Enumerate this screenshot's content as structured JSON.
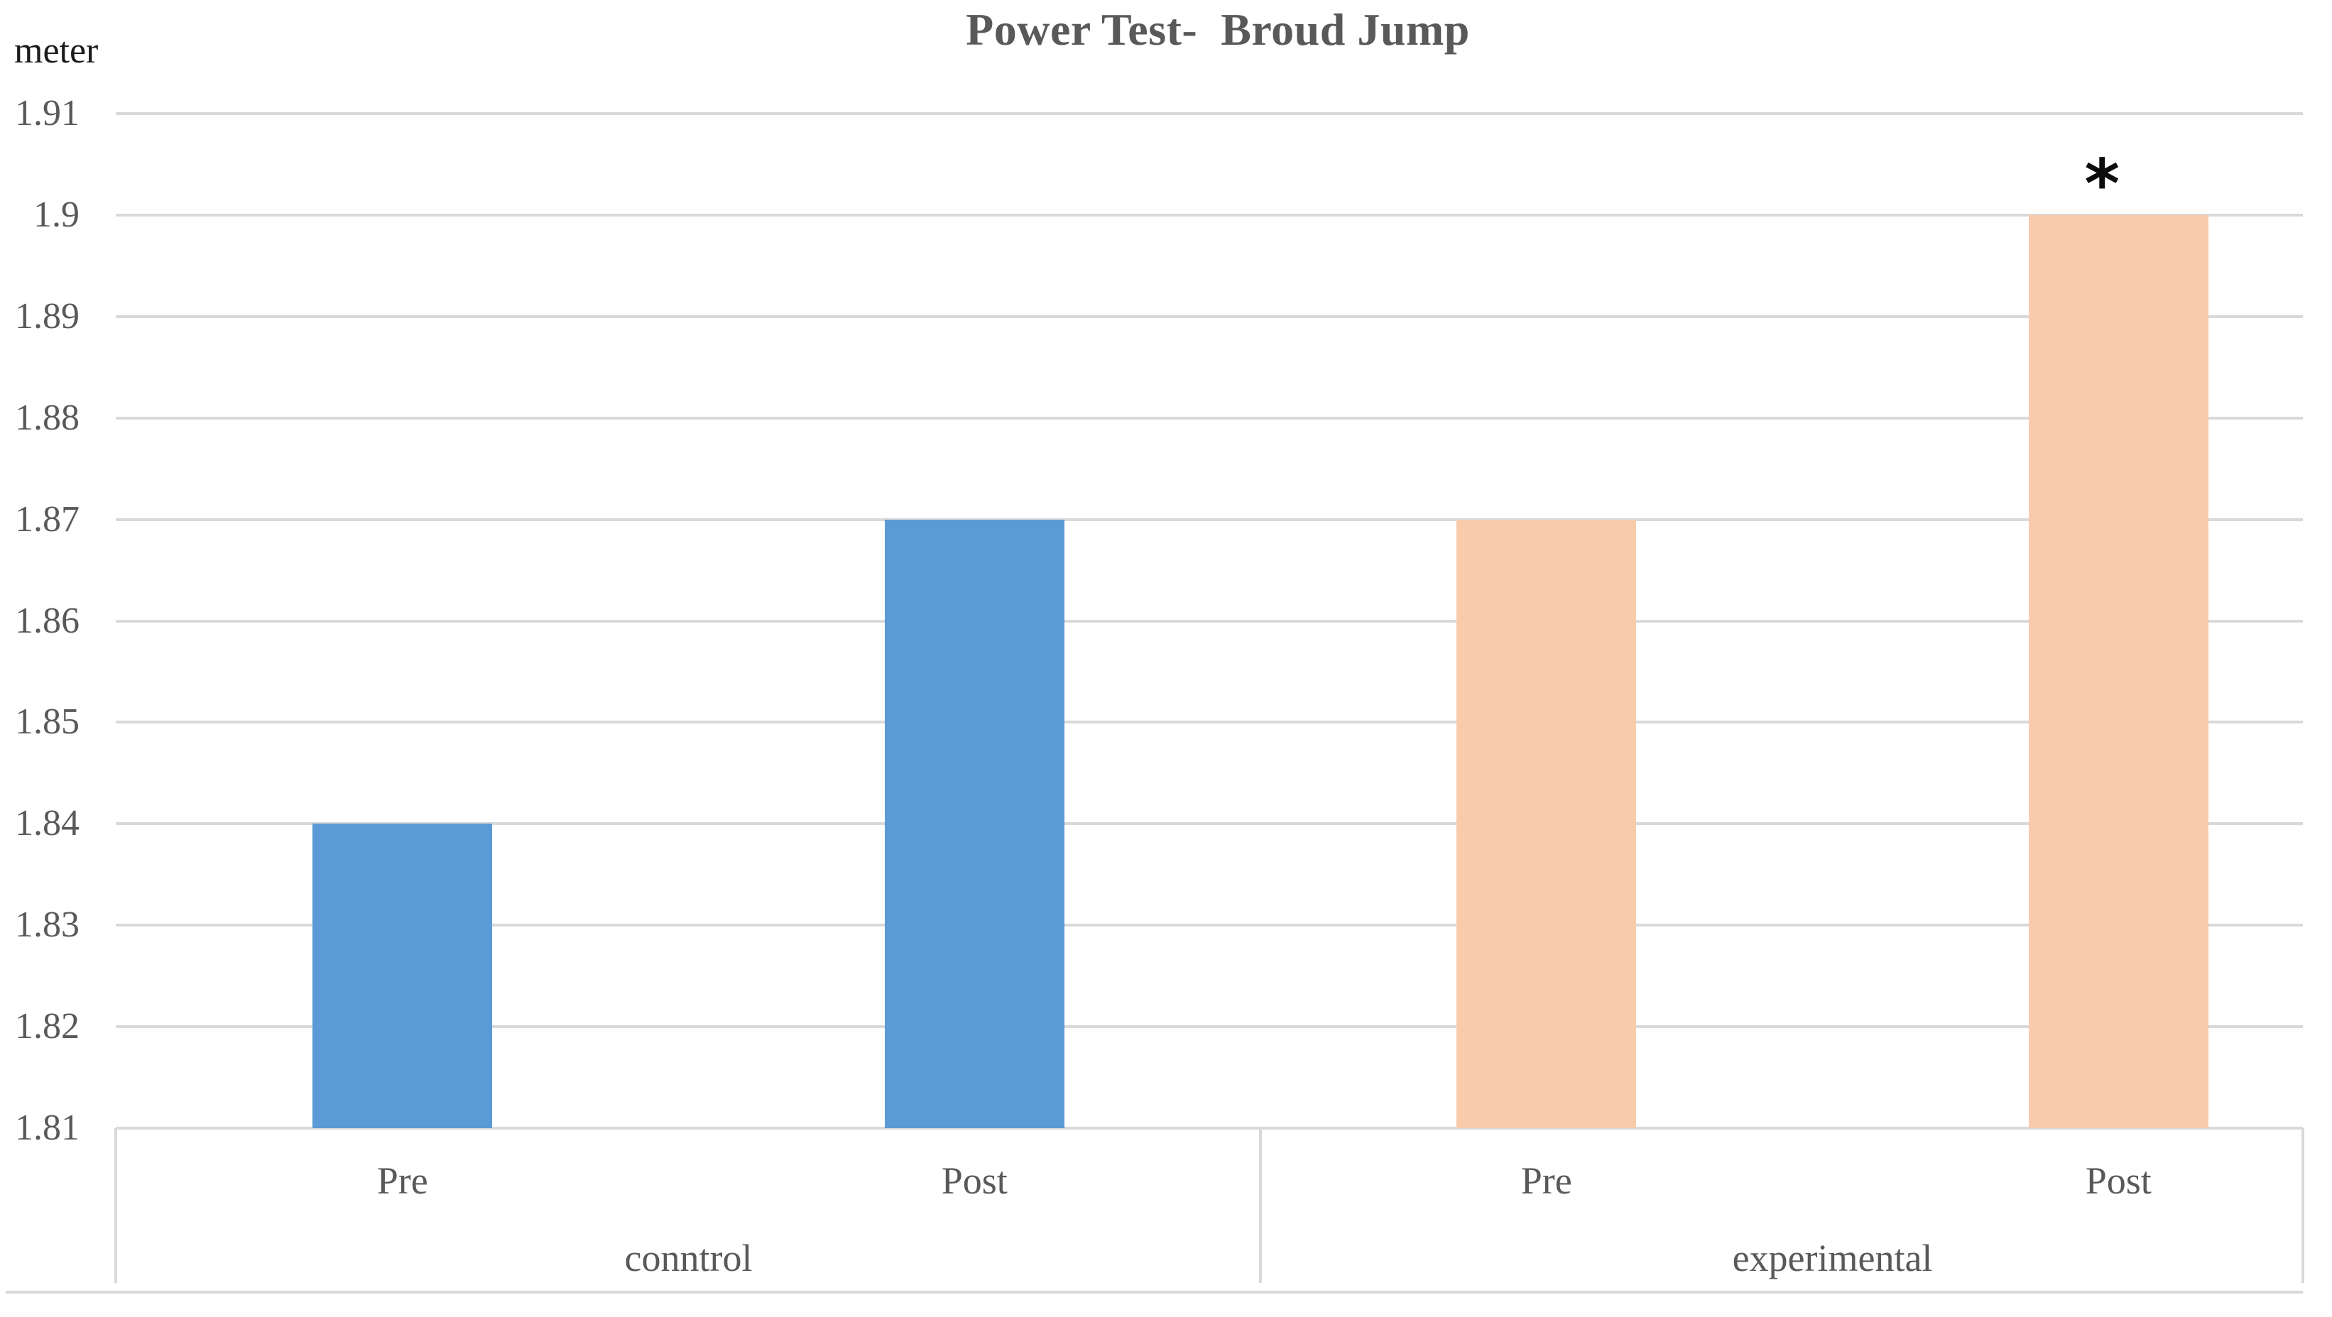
{
  "chart_data": {
    "type": "bar",
    "title": "Power Test-  Broud Jump",
    "ylabel": "meter",
    "xlabel": "",
    "ylim": [
      1.81,
      1.91
    ],
    "ytick_step": 0.01,
    "ytick_labels": [
      "1.91",
      "1.9",
      "1.89",
      "1.88",
      "1.87",
      "1.86",
      "1.85",
      "1.84",
      "1.83",
      "1.82",
      "1.81"
    ],
    "grid": true,
    "legend": "none",
    "groups": [
      {
        "label": "conntrol",
        "bar_color": "#5B9BD5",
        "points": [
          {
            "label": "Pre",
            "value": 1.84,
            "annotation": ""
          },
          {
            "label": "Post",
            "value": 1.87,
            "annotation": ""
          }
        ]
      },
      {
        "label": "experimental",
        "bar_color": "#F8CBAD",
        "points": [
          {
            "label": "Pre",
            "value": 1.87,
            "annotation": ""
          },
          {
            "label": "Post",
            "value": 1.9,
            "annotation": "*"
          }
        ]
      }
    ],
    "colors": {
      "control_bar": "#5B9BD5",
      "experimental_bar": "#F8CBAD",
      "gridline": "#D9D9D9",
      "axis_text": "#595959",
      "title_text": "#595959",
      "unit_text": "#1b1b1b",
      "annotation_text": "#0d0d0d"
    }
  }
}
